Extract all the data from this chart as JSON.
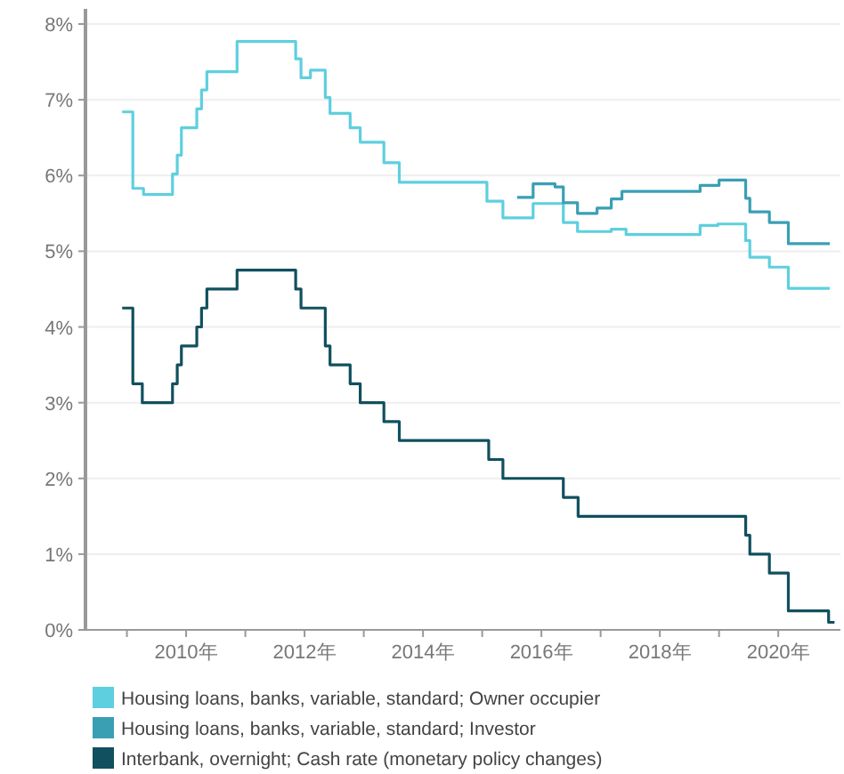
{
  "chart_data": {
    "type": "step",
    "xlim": [
      2008.3,
      2021.05
    ],
    "ylim": [
      0,
      8.2
    ],
    "xticks": [
      {
        "value": 2009,
        "label": null
      },
      {
        "value": 2010,
        "label": "2010年"
      },
      {
        "value": 2011,
        "label": null
      },
      {
        "value": 2012,
        "label": "2012年"
      },
      {
        "value": 2013,
        "label": null
      },
      {
        "value": 2014,
        "label": "2014年"
      },
      {
        "value": 2015,
        "label": null
      },
      {
        "value": 2016,
        "label": "2016年"
      },
      {
        "value": 2017,
        "label": null
      },
      {
        "value": 2018,
        "label": "2018年"
      },
      {
        "value": 2019,
        "label": null
      },
      {
        "value": 2020,
        "label": "2020年"
      }
    ],
    "yticks": [
      {
        "value": 0,
        "label": "0%"
      },
      {
        "value": 1,
        "label": "1%"
      },
      {
        "value": 2,
        "label": "2%"
      },
      {
        "value": 3,
        "label": "3%"
      },
      {
        "value": 4,
        "label": "4%"
      },
      {
        "value": 5,
        "label": "5%"
      },
      {
        "value": 6,
        "label": "6%"
      },
      {
        "value": 7,
        "label": "7%"
      },
      {
        "value": 8,
        "label": "8%"
      }
    ],
    "grid": "y",
    "legend": "bottom",
    "series": [
      {
        "name": "Housing loans, banks, variable, standard; Owner occupier",
        "color": "#5ecfdf",
        "x": [
          2008.92,
          2009.1,
          2009.28,
          2009.77,
          2009.85,
          2009.92,
          2010.18,
          2010.26,
          2010.35,
          2010.86,
          2011.85,
          2011.94,
          2012.1,
          2012.35,
          2012.43,
          2012.77,
          2012.94,
          2013.34,
          2013.6,
          2015.08,
          2015.35,
          2015.86,
          2016.37,
          2016.61,
          2017.18,
          2017.43,
          2018.68,
          2018.98,
          2019.45,
          2019.52,
          2019.85,
          2020.17,
          2020.87
        ],
        "values": [
          6.84,
          5.83,
          5.75,
          6.02,
          6.27,
          6.63,
          6.88,
          7.13,
          7.37,
          7.77,
          7.54,
          7.29,
          7.39,
          7.03,
          6.82,
          6.63,
          6.44,
          6.17,
          5.91,
          5.66,
          5.44,
          5.63,
          5.38,
          5.26,
          5.29,
          5.22,
          5.34,
          5.36,
          5.14,
          4.92,
          4.79,
          4.51,
          4.51
        ]
      },
      {
        "name": "Housing loans, banks, variable, standard; Investor",
        "color": "#3a9fb3",
        "x": [
          2015.59,
          2015.86,
          2016.23,
          2016.37,
          2016.61,
          2016.94,
          2017.18,
          2017.36,
          2018.68,
          2019.0,
          2019.45,
          2019.52,
          2019.85,
          2020.17,
          2020.87
        ],
        "values": [
          5.71,
          5.89,
          5.85,
          5.64,
          5.5,
          5.57,
          5.69,
          5.79,
          5.87,
          5.94,
          5.7,
          5.52,
          5.38,
          5.1,
          5.1
        ]
      },
      {
        "name": "Interbank, overnight; Cash rate (monetary policy changes)",
        "color": "#11505f",
        "x": [
          2008.92,
          2009.1,
          2009.26,
          2009.77,
          2009.85,
          2009.92,
          2010.18,
          2010.26,
          2010.35,
          2010.86,
          2011.85,
          2011.94,
          2012.35,
          2012.43,
          2012.77,
          2012.94,
          2013.34,
          2013.6,
          2015.11,
          2015.35,
          2016.37,
          2016.62,
          2019.45,
          2019.52,
          2019.85,
          2020.17,
          2020.85,
          2020.95
        ],
        "values": [
          4.25,
          3.25,
          3.0,
          3.25,
          3.5,
          3.75,
          4.0,
          4.25,
          4.5,
          4.75,
          4.5,
          4.25,
          3.75,
          3.5,
          3.25,
          3.0,
          2.75,
          2.5,
          2.25,
          2.0,
          1.75,
          1.5,
          1.25,
          1.0,
          0.75,
          0.25,
          0.1,
          0.1
        ]
      }
    ]
  }
}
